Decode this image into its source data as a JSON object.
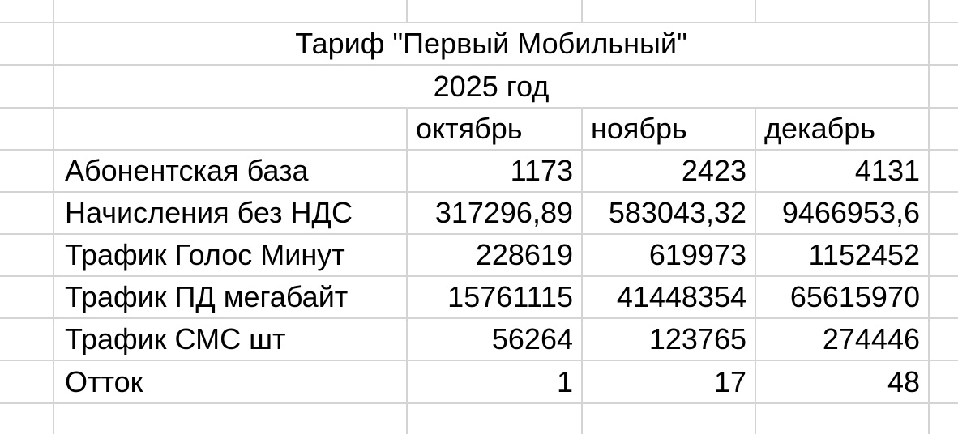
{
  "table": {
    "title": "Тариф \"Первый Мобильный\"",
    "subtitle": "2025 год",
    "columns": [
      "октябрь",
      "ноябрь",
      "декабрь"
    ],
    "rows": [
      {
        "label": "Абонентская база",
        "values": [
          "1173",
          "2423",
          "4131"
        ]
      },
      {
        "label": "Начисления без НДС",
        "values": [
          "317296,89",
          "583043,32",
          "9466953,6"
        ]
      },
      {
        "label": "Трафик Голос Минут",
        "values": [
          "228619",
          "619973",
          "1152452"
        ]
      },
      {
        "label": "Трафик ПД мегабайт",
        "values": [
          "15761115",
          "41448354",
          "65615970"
        ]
      },
      {
        "label": "Трафик СМС шт",
        "values": [
          "56264",
          "123765",
          "274446"
        ]
      },
      {
        "label": "Отток",
        "values": [
          "1",
          "17",
          "48"
        ]
      }
    ],
    "colors": {
      "gridline": "#d4d4d4",
      "background": "#ffffff",
      "text": "#000000"
    }
  }
}
